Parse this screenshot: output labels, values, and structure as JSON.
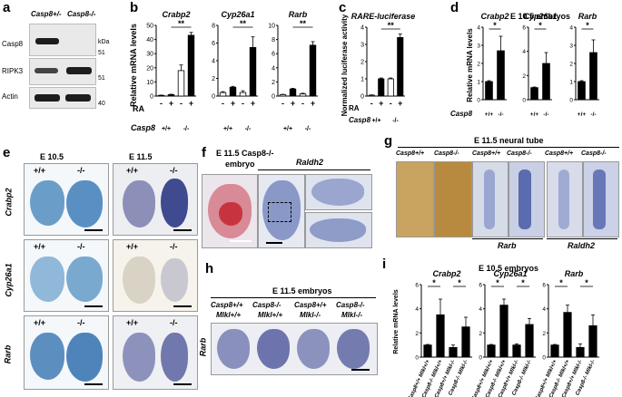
{
  "panels": {
    "a": {
      "label": "a",
      "genotypes": [
        "Casp8+/-",
        "Casp8-/-"
      ],
      "rows": [
        "Casp8",
        "RIPK3",
        "Actin"
      ],
      "kda_label": "kDa",
      "markers": [
        "51",
        "51",
        "40"
      ]
    },
    "b": {
      "label": "b",
      "ylabel": "Relative mRNA levels",
      "ra_label": "RA",
      "casp8_label": "Casp8",
      "ra_ticks": [
        "-",
        "+",
        "-",
        "+"
      ],
      "geno_ticks": [
        "+/+",
        "-/-"
      ],
      "sig": "**"
    },
    "c": {
      "label": "c",
      "title": "RARE-luciferase",
      "ylabel": "Normalized luciferase activity",
      "ra_label": "RA",
      "casp8_label": "Casp8",
      "ra_ticks": [
        "-",
        "+",
        "-",
        "+"
      ],
      "geno_ticks": [
        "+/+",
        "-/-"
      ],
      "sig": "**"
    },
    "d": {
      "label": "d",
      "title": "E 10.5 embryos",
      "ylabel": "Relative mRNA levels",
      "casp8_label": "Casp8",
      "geno_ticks": [
        "+/+",
        "-/-"
      ],
      "sig": "*"
    },
    "e": {
      "label": "e",
      "stages": [
        "E 10.5",
        "E 11.5"
      ],
      "rows": [
        "Crabp2",
        "Cyp26a1",
        "Rarb"
      ],
      "geno": [
        "+/+",
        "-/-"
      ]
    },
    "f": {
      "label": "f",
      "title_line1": "E 11.5 Casp8-/-",
      "title_line2": "embryo",
      "probe": "Raldh2"
    },
    "g": {
      "label": "g",
      "title": "E 11.5 neural tube",
      "genotypes": [
        "Casp8+/+",
        "Casp8-/-",
        "Casp8+/+",
        "Casp8-/-",
        "Casp8+/+",
        "Casp8-/-"
      ],
      "probes": [
        "Rarb",
        "Raldh2"
      ]
    },
    "h": {
      "label": "h",
      "title": "E 11.5 embryos",
      "genotypes": [
        {
          "casp8": "Casp8+/+",
          "mlkl": "Mlkl+/+"
        },
        {
          "casp8": "Casp8-/-",
          "mlkl": "Mlkl+/+"
        },
        {
          "casp8": "Casp8+/+",
          "mlkl": "Mlkl-/-"
        },
        {
          "casp8": "Casp8-/-",
          "mlkl": "Mlkl-/-"
        }
      ],
      "probe": "Rarb"
    },
    "i": {
      "label": "i",
      "title": "E 10.5 embryos",
      "ylabel": "Relative mRNA levels",
      "sig": "*",
      "xticks": [
        "Casp8+/+ Mlkl+/+",
        "Casp8-/- Mlkl+/+",
        "Casp8+/+ Mlkl-/-",
        "Casp8-/- Mlkl-/-"
      ]
    }
  },
  "chart_data": [
    {
      "panel": "b",
      "type": "bar",
      "title": "Crabp2",
      "categories": [
        "+/+ RA-",
        "+/+ RA+",
        "-/- RA-",
        "-/- RA+"
      ],
      "values": [
        0.5,
        1.0,
        18,
        43
      ],
      "errors": [
        0.2,
        0.3,
        4,
        2
      ],
      "ylim": [
        0,
        50
      ],
      "yticks": [
        0,
        10,
        20,
        30,
        40,
        50
      ],
      "bar_colors": [
        "#ffffff",
        "#000000",
        "#ffffff",
        "#000000"
      ]
    },
    {
      "panel": "b",
      "type": "bar",
      "title": "Cyp26a1",
      "categories": [
        "+/+ RA-",
        "+/+ RA+",
        "-/- RA-",
        "-/- RA+"
      ],
      "values": [
        0.4,
        1.0,
        0.4,
        5.5
      ],
      "errors": [
        0.1,
        0.1,
        0.2,
        1.2
      ],
      "ylim": [
        0,
        8
      ],
      "yticks": [
        0,
        2,
        4,
        6,
        8
      ],
      "bar_colors": [
        "#ffffff",
        "#000000",
        "#ffffff",
        "#000000"
      ]
    },
    {
      "panel": "b",
      "type": "bar",
      "title": "Rarb",
      "categories": [
        "+/+ RA-",
        "+/+ RA+",
        "-/- RA-",
        "-/- RA+"
      ],
      "values": [
        0.2,
        1.0,
        0.3,
        7.2
      ],
      "errors": [
        0.05,
        0.1,
        0.1,
        0.5
      ],
      "ylim": [
        0,
        10
      ],
      "yticks": [
        0,
        2,
        4,
        6,
        8,
        10
      ],
      "bar_colors": [
        "#ffffff",
        "#000000",
        "#ffffff",
        "#000000"
      ]
    },
    {
      "panel": "c",
      "type": "bar",
      "title": "RARE-luciferase",
      "categories": [
        "+/+ RA-",
        "+/+ RA+",
        "-/- RA-",
        "-/- RA+"
      ],
      "values": [
        0.05,
        1.0,
        1.0,
        3.4
      ],
      "errors": [
        0.02,
        0.05,
        0.05,
        0.2
      ],
      "ylim": [
        0,
        4
      ],
      "yticks": [
        0,
        1,
        2,
        3,
        4
      ],
      "bar_colors": [
        "#ffffff",
        "#000000",
        "#ffffff",
        "#000000"
      ]
    },
    {
      "panel": "d",
      "type": "bar",
      "title": "Crabp2",
      "categories": [
        "+/+",
        "-/-"
      ],
      "values": [
        1.0,
        2.7
      ],
      "errors": [
        0.05,
        0.8
      ],
      "ylim": [
        0,
        4
      ],
      "yticks": [
        0,
        1,
        2,
        3,
        4
      ],
      "bar_colors": [
        "#000000",
        "#000000"
      ]
    },
    {
      "panel": "d",
      "type": "bar",
      "title": "Cyp26a1",
      "categories": [
        "+/+",
        "-/-"
      ],
      "values": [
        1.0,
        3.0
      ],
      "errors": [
        0.05,
        0.9
      ],
      "ylim": [
        0,
        6
      ],
      "yticks": [
        0,
        2,
        4,
        6
      ],
      "bar_colors": [
        "#000000",
        "#000000"
      ]
    },
    {
      "panel": "d",
      "type": "bar",
      "title": "Rarb",
      "categories": [
        "+/+",
        "-/-"
      ],
      "values": [
        1.0,
        2.6
      ],
      "errors": [
        0.05,
        0.7
      ],
      "ylim": [
        0,
        4
      ],
      "yticks": [
        0,
        1,
        2,
        3,
        4
      ],
      "bar_colors": [
        "#000000",
        "#000000"
      ]
    },
    {
      "panel": "i",
      "type": "bar",
      "title": "Crabp2",
      "categories": [
        "Casp8+/+ Mlkl+/+",
        "Casp8-/- Mlkl+/+",
        "Casp8+/+ Mlkl-/-",
        "Casp8-/- Mlkl-/-"
      ],
      "values": [
        1.0,
        3.5,
        0.8,
        2.5
      ],
      "errors": [
        0.05,
        1.3,
        0.2,
        0.8
      ],
      "ylim": [
        0,
        6
      ],
      "yticks": [
        0,
        2,
        4,
        6
      ],
      "bar_colors": [
        "#000000",
        "#000000",
        "#000000",
        "#000000"
      ]
    },
    {
      "panel": "i",
      "type": "bar",
      "title": "Cyp26a1",
      "categories": [
        "Casp8+/+ Mlkl+/+",
        "Casp8-/- Mlkl+/+",
        "Casp8+/+ Mlkl-/-",
        "Casp8-/- Mlkl-/-"
      ],
      "values": [
        1.0,
        4.3,
        1.0,
        2.7
      ],
      "errors": [
        0.05,
        0.5,
        0.1,
        0.5
      ],
      "ylim": [
        0,
        6
      ],
      "yticks": [
        0,
        2,
        4,
        6
      ],
      "bar_colors": [
        "#000000",
        "#000000",
        "#000000",
        "#000000"
      ]
    },
    {
      "panel": "i",
      "type": "bar",
      "title": "Rarb",
      "categories": [
        "Casp8+/+ Mlkl+/+",
        "Casp8-/- Mlkl+/+",
        "Casp8+/+ Mlkl-/-",
        "Casp8-/- Mlkl-/-"
      ],
      "values": [
        1.0,
        3.7,
        0.8,
        2.6
      ],
      "errors": [
        0.05,
        0.6,
        0.3,
        0.9
      ],
      "ylim": [
        0,
        6
      ],
      "yticks": [
        0,
        2,
        4,
        6
      ],
      "bar_colors": [
        "#000000",
        "#000000",
        "#000000",
        "#000000"
      ]
    }
  ]
}
